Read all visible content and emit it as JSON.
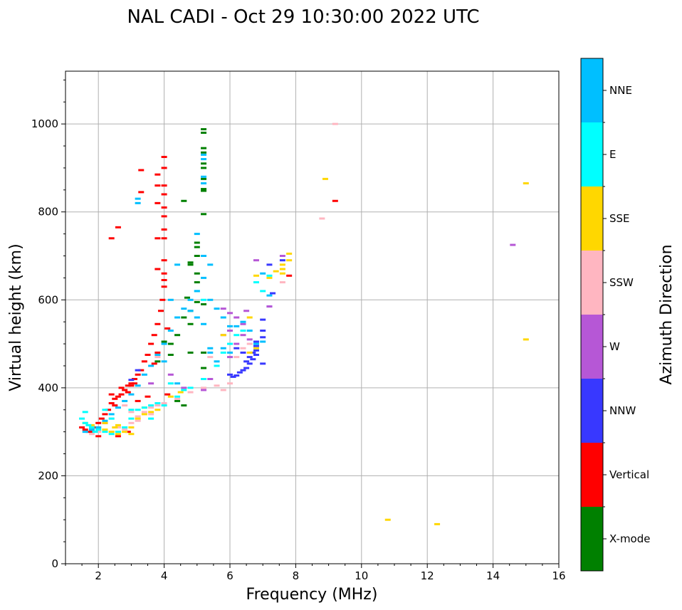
{
  "chart_data": {
    "type": "scatter",
    "title": "NAL CADI - Oct 29 10:30:00 2022 UTC",
    "xlabel": "Frequency (MHz)",
    "ylabel": "Virtual height (km)",
    "xlim": [
      1,
      16
    ],
    "ylim": [
      0,
      1120
    ],
    "xticks": [
      2,
      4,
      6,
      8,
      10,
      12,
      14,
      16
    ],
    "yticks": [
      0,
      200,
      400,
      600,
      800,
      1000
    ],
    "xtick_labels": [
      "2",
      "4",
      "6",
      "8",
      "10",
      "12",
      "14",
      "16"
    ],
    "ytick_labels": [
      "0",
      "200",
      "400",
      "600",
      "800",
      "1000"
    ],
    "grid": true,
    "colorbar": {
      "label": "Azimuth Direction",
      "categories": [
        {
          "name": "X-mode",
          "color": "#008000"
        },
        {
          "name": "Vertical",
          "color": "#ff0000"
        },
        {
          "name": "NNW",
          "color": "#3838ff"
        },
        {
          "name": "W",
          "color": "#b657d6"
        },
        {
          "name": "SSW",
          "color": "#ffb6c1"
        },
        {
          "name": "SSE",
          "color": "#ffd700"
        },
        {
          "name": "E",
          "color": "#00ffff"
        },
        {
          "name": "NNE",
          "color": "#00bfff"
        }
      ]
    },
    "series": [
      {
        "name": "X-mode",
        "points": [
          [
            5.2,
            988
          ],
          [
            5.2,
            980
          ],
          [
            5.2,
            945
          ],
          [
            5.2,
            935
          ],
          [
            5.2,
            910
          ],
          [
            5.2,
            900
          ],
          [
            5.2,
            852
          ],
          [
            5.2,
            848
          ],
          [
            5.2,
            795
          ],
          [
            5.0,
            730
          ],
          [
            5.0,
            720
          ],
          [
            5.0,
            700
          ],
          [
            4.8,
            685
          ],
          [
            5.0,
            660
          ],
          [
            5.0,
            640
          ],
          [
            4.7,
            605
          ],
          [
            5.0,
            595
          ],
          [
            5.2,
            590
          ],
          [
            4.8,
            575
          ],
          [
            4.6,
            560
          ],
          [
            4.8,
            545
          ],
          [
            4.2,
            500
          ],
          [
            4.0,
            505
          ],
          [
            4.4,
            520
          ],
          [
            5.2,
            480
          ],
          [
            5.2,
            445
          ],
          [
            4.8,
            480
          ],
          [
            4.4,
            370
          ],
          [
            4.6,
            360
          ],
          [
            4.8,
            680
          ],
          [
            4.6,
            825
          ],
          [
            5.2,
            875
          ],
          [
            3.8,
            460
          ],
          [
            4.2,
            475
          ]
        ]
      },
      {
        "name": "Vertical",
        "points": [
          [
            1.5,
            310
          ],
          [
            1.6,
            305
          ],
          [
            1.7,
            300
          ],
          [
            1.8,
            300
          ],
          [
            1.9,
            310
          ],
          [
            2.0,
            320
          ],
          [
            2.1,
            330
          ],
          [
            2.2,
            340
          ],
          [
            2.3,
            350
          ],
          [
            2.4,
            365
          ],
          [
            2.5,
            375
          ],
          [
            2.6,
            380
          ],
          [
            2.7,
            385
          ],
          [
            2.8,
            395
          ],
          [
            2.9,
            405
          ],
          [
            3.0,
            410
          ],
          [
            3.1,
            420
          ],
          [
            3.2,
            430
          ],
          [
            3.3,
            440
          ],
          [
            3.4,
            460
          ],
          [
            3.5,
            475
          ],
          [
            3.6,
            500
          ],
          [
            3.7,
            520
          ],
          [
            3.8,
            545
          ],
          [
            3.9,
            575
          ],
          [
            3.95,
            600
          ],
          [
            4.0,
            630
          ],
          [
            4.0,
            645
          ],
          [
            4.0,
            660
          ],
          [
            4.0,
            690
          ],
          [
            4.0,
            740
          ],
          [
            4.0,
            760
          ],
          [
            4.0,
            790
          ],
          [
            4.0,
            810
          ],
          [
            4.0,
            840
          ],
          [
            4.0,
            860
          ],
          [
            4.0,
            900
          ],
          [
            4.0,
            925
          ],
          [
            3.8,
            885
          ],
          [
            3.8,
            860
          ],
          [
            3.8,
            820
          ],
          [
            3.3,
            845
          ],
          [
            3.3,
            895
          ],
          [
            2.6,
            765
          ],
          [
            2.4,
            740
          ],
          [
            3.8,
            740
          ],
          [
            3.8,
            670
          ],
          [
            2.9,
            390
          ],
          [
            2.7,
            400
          ],
          [
            3.1,
            410
          ],
          [
            2.4,
            385
          ],
          [
            2.5,
            360
          ],
          [
            2.2,
            320
          ],
          [
            2.0,
            290
          ],
          [
            3.7,
            455
          ],
          [
            3.8,
            480
          ],
          [
            4.1,
            535
          ],
          [
            4.1,
            385
          ],
          [
            3.2,
            370
          ],
          [
            3.5,
            380
          ],
          [
            2.9,
            300
          ],
          [
            3.0,
            405
          ],
          [
            9.2,
            825
          ],
          [
            7.8,
            655
          ],
          [
            2.6,
            290
          ]
        ]
      },
      {
        "name": "NNW",
        "points": [
          [
            6.0,
            430
          ],
          [
            6.1,
            425
          ],
          [
            6.2,
            428
          ],
          [
            6.3,
            435
          ],
          [
            6.4,
            440
          ],
          [
            6.5,
            445
          ],
          [
            6.6,
            455
          ],
          [
            6.7,
            465
          ],
          [
            6.8,
            475
          ],
          [
            6.8,
            485
          ],
          [
            6.8,
            495
          ],
          [
            6.8,
            505
          ],
          [
            6.5,
            460
          ],
          [
            6.6,
            470
          ],
          [
            6.7,
            480
          ],
          [
            7.0,
            455
          ],
          [
            7.0,
            515
          ],
          [
            7.0,
            530
          ],
          [
            7.0,
            555
          ],
          [
            7.2,
            585
          ],
          [
            7.3,
            615
          ],
          [
            6.4,
            480
          ],
          [
            6.2,
            490
          ],
          [
            3.0,
            418
          ],
          [
            3.2,
            440
          ],
          [
            7.6,
            690
          ],
          [
            7.2,
            680
          ]
        ]
      },
      {
        "name": "W",
        "points": [
          [
            5.8,
            580
          ],
          [
            6.0,
            570
          ],
          [
            6.2,
            560
          ],
          [
            6.4,
            545
          ],
          [
            6.4,
            520
          ],
          [
            6.6,
            510
          ],
          [
            6.0,
            530
          ],
          [
            5.8,
            520
          ],
          [
            4.2,
            430
          ],
          [
            4.6,
            400
          ],
          [
            5.2,
            395
          ],
          [
            5.4,
            420
          ],
          [
            6.8,
            690
          ],
          [
            7.2,
            585
          ],
          [
            14.6,
            725
          ],
          [
            6.5,
            575
          ],
          [
            3.6,
            410
          ],
          [
            7.6,
            700
          ],
          [
            6.2,
            500
          ],
          [
            6.0,
            470
          ]
        ]
      },
      {
        "name": "SSW",
        "points": [
          [
            1.8,
            295
          ],
          [
            2.0,
            300
          ],
          [
            2.2,
            305
          ],
          [
            2.4,
            300
          ],
          [
            2.6,
            310
          ],
          [
            2.8,
            305
          ],
          [
            3.0,
            320
          ],
          [
            3.2,
            335
          ],
          [
            3.4,
            345
          ],
          [
            3.6,
            355
          ],
          [
            3.8,
            360
          ],
          [
            4.0,
            365
          ],
          [
            4.4,
            375
          ],
          [
            4.8,
            390
          ],
          [
            5.2,
            400
          ],
          [
            5.6,
            405
          ],
          [
            6.0,
            410
          ],
          [
            6.2,
            470
          ],
          [
            6.6,
            500
          ],
          [
            6.4,
            490
          ],
          [
            5.4,
            470
          ],
          [
            3.0,
            345
          ],
          [
            3.2,
            325
          ],
          [
            3.6,
            340
          ],
          [
            8.8,
            785
          ],
          [
            9.2,
            1000
          ],
          [
            7.6,
            640
          ],
          [
            2.4,
            330
          ],
          [
            2.8,
            360
          ],
          [
            3.8,
            470
          ],
          [
            5.8,
            395
          ]
        ]
      },
      {
        "name": "SSE",
        "points": [
          [
            1.6,
            320
          ],
          [
            1.8,
            315
          ],
          [
            2.0,
            310
          ],
          [
            2.2,
            305
          ],
          [
            2.4,
            300
          ],
          [
            2.6,
            295
          ],
          [
            2.8,
            300
          ],
          [
            3.0,
            310
          ],
          [
            3.2,
            330
          ],
          [
            3.4,
            340
          ],
          [
            3.6,
            345
          ],
          [
            3.8,
            350
          ],
          [
            2.2,
            320
          ],
          [
            2.6,
            315
          ],
          [
            3.0,
            295
          ],
          [
            7.6,
            670
          ],
          [
            7.6,
            680
          ],
          [
            7.6,
            660
          ],
          [
            7.8,
            705
          ],
          [
            7.8,
            690
          ],
          [
            7.4,
            665
          ],
          [
            7.2,
            650
          ],
          [
            6.8,
            655
          ],
          [
            6.6,
            560
          ],
          [
            6.8,
            490
          ],
          [
            6.6,
            480
          ],
          [
            8.9,
            875
          ],
          [
            15.0,
            865
          ],
          [
            15.0,
            510
          ],
          [
            10.8,
            100
          ],
          [
            12.3,
            90
          ],
          [
            5.8,
            520
          ],
          [
            4.2,
            380
          ],
          [
            4.5,
            390
          ],
          [
            2.5,
            310
          ],
          [
            3.4,
            355
          ]
        ]
      },
      {
        "name": "E",
        "points": [
          [
            1.5,
            330
          ],
          [
            1.6,
            320
          ],
          [
            1.7,
            315
          ],
          [
            1.8,
            310
          ],
          [
            1.9,
            300
          ],
          [
            2.0,
            305
          ],
          [
            2.2,
            300
          ],
          [
            2.4,
            295
          ],
          [
            2.6,
            300
          ],
          [
            2.8,
            310
          ],
          [
            3.0,
            330
          ],
          [
            3.2,
            350
          ],
          [
            3.4,
            355
          ],
          [
            3.6,
            360
          ],
          [
            3.8,
            365
          ],
          [
            4.0,
            360
          ],
          [
            4.4,
            380
          ],
          [
            4.8,
            400
          ],
          [
            5.2,
            420
          ],
          [
            5.6,
            450
          ],
          [
            5.8,
            480
          ],
          [
            6.0,
            500
          ],
          [
            6.2,
            520
          ],
          [
            6.4,
            530
          ],
          [
            7.0,
            620
          ],
          [
            7.2,
            655
          ],
          [
            6.8,
            640
          ],
          [
            3.6,
            330
          ],
          [
            2.4,
            330
          ],
          [
            2.2,
            350
          ],
          [
            3.0,
            350
          ],
          [
            4.2,
            410
          ],
          [
            4.6,
            395
          ],
          [
            5.0,
            620
          ],
          [
            5.2,
            600
          ],
          [
            1.6,
            345
          ]
        ]
      },
      {
        "name": "NNE",
        "points": [
          [
            1.6,
            300
          ],
          [
            1.8,
            305
          ],
          [
            2.0,
            310
          ],
          [
            2.2,
            325
          ],
          [
            2.4,
            340
          ],
          [
            2.6,
            355
          ],
          [
            2.8,
            370
          ],
          [
            3.0,
            385
          ],
          [
            3.2,
            405
          ],
          [
            3.4,
            430
          ],
          [
            3.6,
            450
          ],
          [
            3.8,
            475
          ],
          [
            4.0,
            500
          ],
          [
            4.2,
            530
          ],
          [
            4.4,
            560
          ],
          [
            4.6,
            580
          ],
          [
            4.8,
            600
          ],
          [
            5.0,
            620
          ],
          [
            5.2,
            650
          ],
          [
            5.4,
            680
          ],
          [
            5.0,
            750
          ],
          [
            5.2,
            700
          ],
          [
            5.4,
            600
          ],
          [
            5.6,
            580
          ],
          [
            5.8,
            560
          ],
          [
            6.0,
            540
          ],
          [
            6.2,
            540
          ],
          [
            6.4,
            550
          ],
          [
            6.6,
            530
          ],
          [
            6.8,
            500
          ],
          [
            7.0,
            505
          ],
          [
            7.2,
            610
          ],
          [
            7.0,
            660
          ],
          [
            4.4,
            680
          ],
          [
            4.2,
            600
          ],
          [
            4.8,
            575
          ],
          [
            5.0,
            560
          ],
          [
            5.2,
            545
          ],
          [
            5.4,
            490
          ],
          [
            5.6,
            460
          ],
          [
            4.4,
            410
          ],
          [
            4.0,
            460
          ],
          [
            3.2,
            820
          ],
          [
            3.2,
            830
          ],
          [
            5.2,
            930
          ],
          [
            5.2,
            920
          ],
          [
            5.2,
            880
          ],
          [
            5.2,
            865
          ],
          [
            5.4,
            480
          ],
          [
            5.8,
            490
          ],
          [
            6.0,
            480
          ]
        ]
      }
    ]
  }
}
